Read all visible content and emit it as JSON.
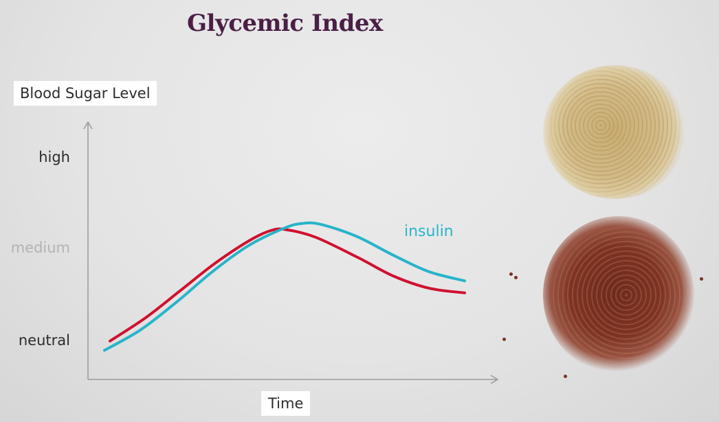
{
  "title": "Glycemic Index",
  "chart_data": {
    "type": "line",
    "title": "Glycemic Index",
    "ylabel": "Blood Sugar Level",
    "xlabel": "Time",
    "y_ticks": [
      {
        "label": "neutral",
        "value": 0
      },
      {
        "label": "medium",
        "value": 1
      },
      {
        "label": "high",
        "value": 2
      }
    ],
    "xlim": [
      0,
      1
    ],
    "ylim": [
      -0.3,
      2.7
    ],
    "series": [
      {
        "name": "",
        "color": "#d0102e",
        "x": [
          0.0,
          0.1,
          0.2,
          0.3,
          0.4,
          0.46,
          0.5,
          0.58,
          0.7,
          0.8,
          0.9,
          1.0
        ],
        "y": [
          0.0,
          0.25,
          0.55,
          0.85,
          1.1,
          1.2,
          1.2,
          1.12,
          0.9,
          0.7,
          0.57,
          0.52
        ]
      },
      {
        "name": "insulin",
        "color": "#27b4c9",
        "x": [
          0.0,
          0.1,
          0.2,
          0.3,
          0.4,
          0.5,
          0.55,
          0.6,
          0.7,
          0.8,
          0.9,
          1.0
        ],
        "y": [
          -0.1,
          0.12,
          0.42,
          0.75,
          1.03,
          1.22,
          1.27,
          1.26,
          1.13,
          0.93,
          0.75,
          0.65
        ]
      }
    ],
    "grid": false,
    "legend": "inline label"
  },
  "images": {
    "top": "brown-rice-icon",
    "bottom": "red-quinoa-icon"
  }
}
